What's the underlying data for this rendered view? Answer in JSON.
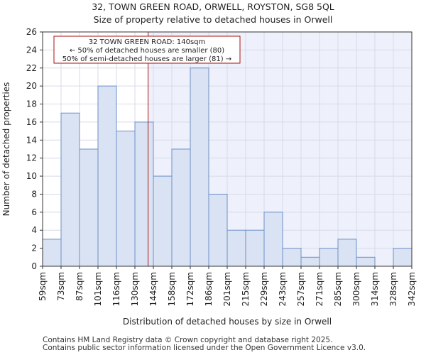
{
  "header": {
    "title": "32, TOWN GREEN ROAD, ORWELL, ROYSTON, SG8 5QL",
    "subtitle": "Size of property relative to detached houses in Orwell"
  },
  "footer": {
    "line1": "Contains HM Land Registry data © Crown copyright and database right 2025.",
    "line2": "Contains public sector information licensed under the Open Government Licence v3.0."
  },
  "chart_data": {
    "type": "bar",
    "title": "Size of property relative to detached houses in Orwell",
    "xlabel": "Distribution of detached houses by size in Orwell",
    "ylabel": "Number of detached properties",
    "ylim": [
      0,
      26
    ],
    "yticks": [
      0,
      2,
      4,
      6,
      8,
      10,
      12,
      14,
      16,
      18,
      20,
      22,
      24,
      26
    ],
    "bin_edges": [
      59,
      73,
      87,
      101,
      116,
      130,
      144,
      158,
      172,
      186,
      201,
      215,
      229,
      243,
      257,
      271,
      285,
      300,
      314,
      328,
      342
    ],
    "x_tick_labels": [
      "59sqm",
      "73sqm",
      "87sqm",
      "101sqm",
      "116sqm",
      "130sqm",
      "144sqm",
      "158sqm",
      "172sqm",
      "186sqm",
      "201sqm",
      "215sqm",
      "229sqm",
      "243sqm",
      "257sqm",
      "271sqm",
      "285sqm",
      "300sqm",
      "314sqm",
      "328sqm",
      "342sqm"
    ],
    "values": [
      3,
      17,
      13,
      20,
      15,
      16,
      10,
      13,
      22,
      8,
      4,
      4,
      6,
      2,
      1,
      2,
      3,
      1,
      0,
      2
    ],
    "marker": {
      "value": 140,
      "color": "#aa1111",
      "label": "32 TOWN GREEN ROAD: 140sqm",
      "line2": "← 50% of detached houses are smaller (80)",
      "line3": "50% of semi-detached houses are larger (81) →"
    },
    "colors": {
      "bar_fill": "#dae3f3",
      "bar_stroke": "#6d8fc7",
      "grid": "#d5dbe8",
      "right_shade": "#eef1fb"
    }
  }
}
